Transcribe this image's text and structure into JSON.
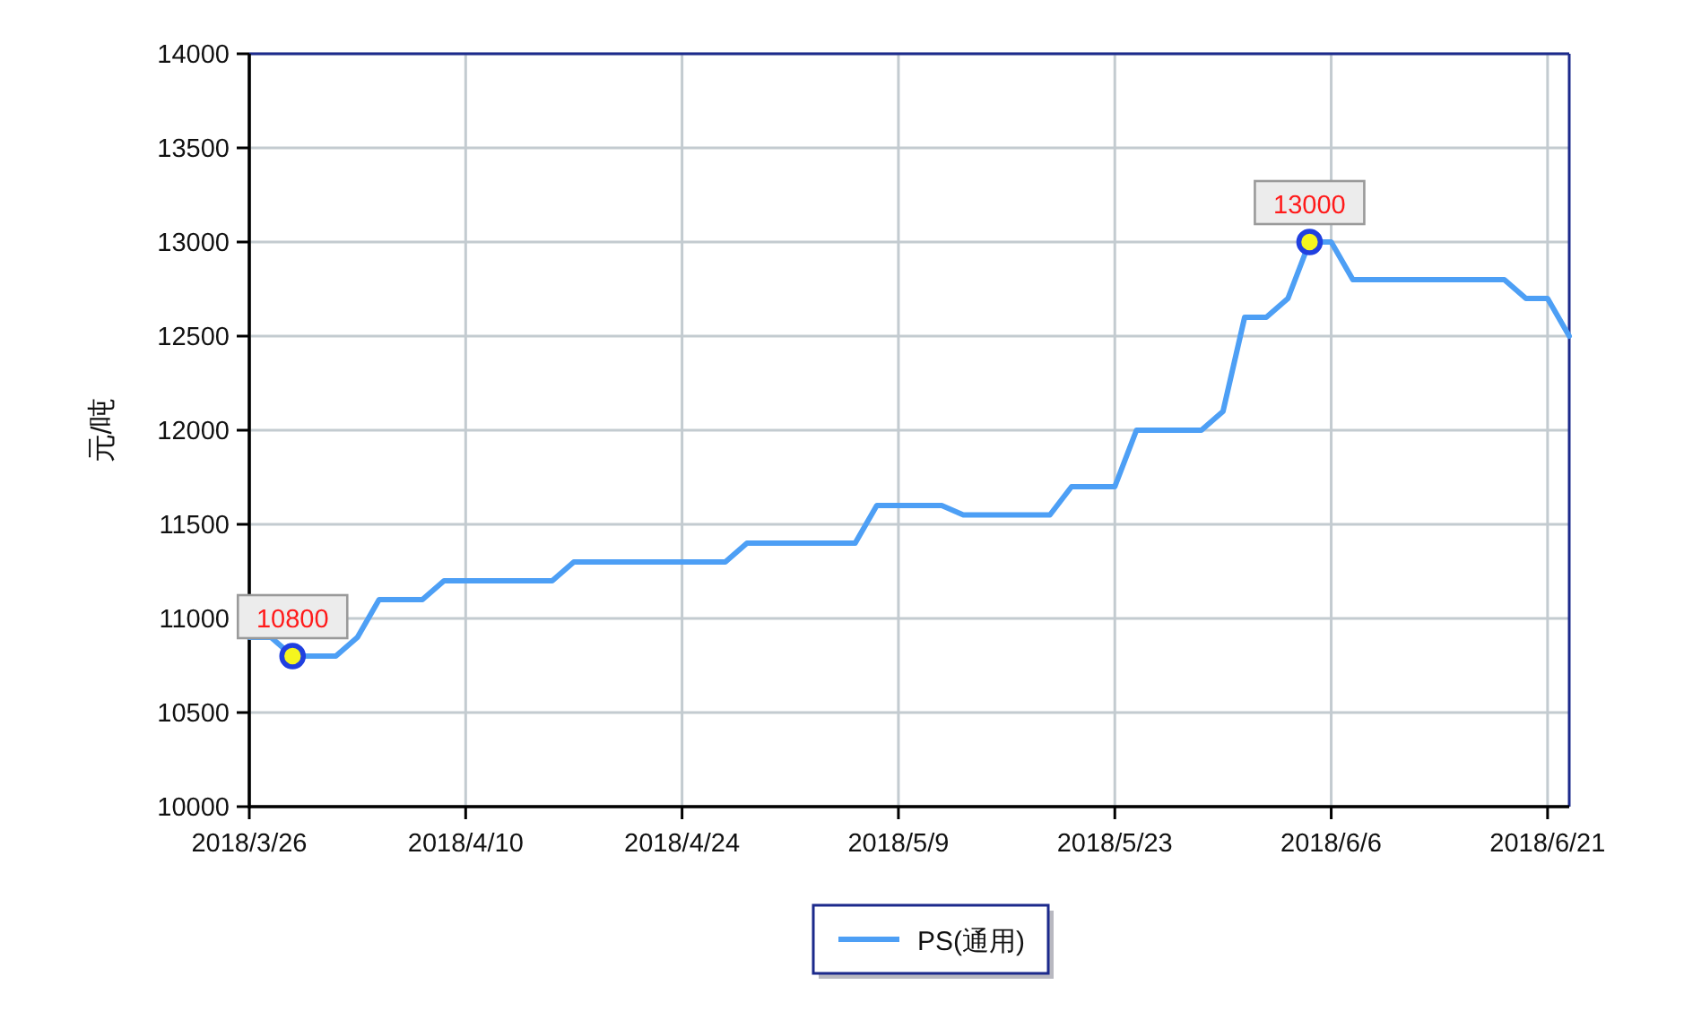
{
  "chart_data": {
    "type": "line",
    "categories": [
      "2018/3/26",
      null,
      null,
      null,
      null,
      null,
      null,
      null,
      null,
      null,
      "2018/4/10",
      null,
      null,
      null,
      null,
      null,
      null,
      null,
      null,
      null,
      "2018/4/24",
      null,
      null,
      null,
      null,
      null,
      null,
      null,
      null,
      null,
      "2018/5/9",
      null,
      null,
      null,
      null,
      null,
      null,
      null,
      null,
      null,
      "2018/5/23",
      null,
      null,
      null,
      null,
      null,
      null,
      null,
      null,
      null,
      "2018/6/6",
      null,
      null,
      null,
      null,
      null,
      null,
      null,
      null,
      null,
      "2018/6/21",
      null
    ],
    "series": [
      {
        "name": "PS(通用)",
        "color": "#4d9ff5",
        "values": [
          10900,
          10900,
          10800,
          10800,
          10800,
          10900,
          11100,
          11100,
          11100,
          11200,
          11200,
          11200,
          11200,
          11200,
          11200,
          11300,
          11300,
          11300,
          11300,
          11300,
          11300,
          11300,
          11300,
          11400,
          11400,
          11400,
          11400,
          11400,
          11400,
          11600,
          11600,
          11600,
          11600,
          11550,
          11550,
          11550,
          11550,
          11550,
          11700,
          11700,
          11700,
          12000,
          12000,
          12000,
          12000,
          12100,
          12600,
          12600,
          12700,
          13000,
          13000,
          12800,
          12800,
          12800,
          12800,
          12800,
          12800,
          12800,
          12800,
          12700,
          12700,
          12500
        ],
        "value_labels": [
          null,
          null,
          "10800",
          null,
          null,
          null,
          null,
          null,
          null,
          null,
          null,
          null,
          null,
          null,
          null,
          null,
          null,
          null,
          null,
          null,
          null,
          null,
          null,
          null,
          null,
          null,
          null,
          null,
          null,
          null,
          null,
          null,
          null,
          null,
          null,
          null,
          null,
          null,
          null,
          null,
          null,
          null,
          null,
          null,
          null,
          null,
          null,
          null,
          null,
          "13000",
          null,
          null,
          null,
          null,
          null,
          null,
          null,
          null,
          null,
          null,
          null,
          null
        ]
      }
    ],
    "ylabel": "元/吨",
    "ylim": [
      10000,
      14000
    ],
    "yticks": [
      10000,
      10500,
      11000,
      11500,
      12000,
      12500,
      13000,
      13500,
      14000
    ],
    "grid": true,
    "legend": "bottom"
  }
}
